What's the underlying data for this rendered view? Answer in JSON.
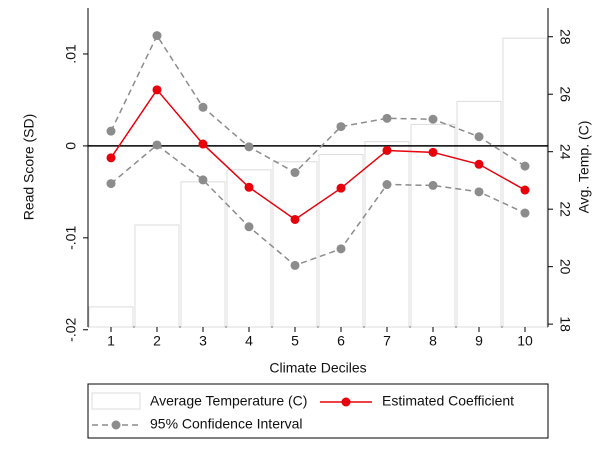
{
  "chart_data": {
    "type": "bar-line",
    "x_label": "Climate Deciles",
    "y_label": "Read Score (SD)",
    "y2_label": "Avg. Temp. (C)",
    "categories": [
      1,
      2,
      3,
      4,
      5,
      6,
      7,
      8,
      9,
      10
    ],
    "ylim": [
      -0.0197,
      0.015
    ],
    "yticks": [
      {
        "value": -0.02,
        "label": "-.02"
      },
      {
        "value": -0.01,
        "label": "-.01"
      },
      0,
      {
        "value": 0.01,
        "label": ".01"
      }
    ],
    "y2lim": [
      17.9,
      29
    ],
    "y2ticks": [
      18,
      20,
      22,
      24,
      26,
      28
    ],
    "series": [
      {
        "name": "Average Temperature (C)",
        "type": "bar",
        "axis": "y2",
        "color": "#dcdcdc",
        "values": [
          18.6,
          21.45,
          22.95,
          23.37,
          23.65,
          23.9,
          24.35,
          24.95,
          25.75,
          27.95
        ]
      },
      {
        "name": "Estimated Coefficient",
        "type": "line",
        "color": "#e8000b",
        "values": [
          -0.0013,
          0.0061,
          0.0002,
          -0.0045,
          -0.008,
          -0.0046,
          -0.0005,
          -0.0007,
          -0.002,
          -0.0048
        ]
      },
      {
        "name": "95% Confidence Interval",
        "type": "band-lines",
        "color": "#8c8c8c",
        "upper": [
          0.0016,
          0.012,
          0.0042,
          -0.0001,
          -0.0029,
          0.0021,
          0.003,
          0.0029,
          0.001,
          -0.0022
        ],
        "lower": [
          -0.0041,
          0.0001,
          -0.0037,
          -0.0088,
          -0.013,
          -0.0112,
          -0.0042,
          -0.0043,
          -0.005,
          -0.0073
        ]
      }
    ]
  }
}
